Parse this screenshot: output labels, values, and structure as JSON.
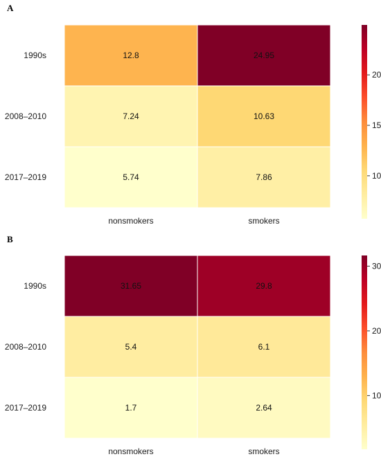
{
  "chart_data": [
    {
      "type": "heatmap",
      "panel": "A",
      "title": "",
      "xlabel": "",
      "ylabel": "",
      "rows": [
        "1990s",
        "2008–2010",
        "2017–2019"
      ],
      "columns": [
        "nonsmokers",
        "smokers"
      ],
      "values": [
        [
          12.8,
          24.95
        ],
        [
          7.24,
          10.63
        ],
        [
          5.74,
          7.86
        ]
      ],
      "value_labels": [
        [
          "12.8",
          "24.95"
        ],
        [
          "7.24",
          "10.63"
        ],
        [
          "5.74",
          "7.86"
        ]
      ],
      "colorbar": {
        "min": 5.74,
        "max": 24.95,
        "ticks": [
          10,
          15,
          20
        ],
        "tick_labels": [
          "10",
          "15",
          "20"
        ]
      },
      "colormap": [
        "#ffffcc",
        "#ffeda0",
        "#fed976",
        "#feb24c",
        "#fd8d3c",
        "#fc4e2a",
        "#e31a1c",
        "#bd0026",
        "#800026"
      ],
      "grid": false
    },
    {
      "type": "heatmap",
      "panel": "B",
      "title": "",
      "xlabel": "",
      "ylabel": "",
      "rows": [
        "1990s",
        "2008–2010",
        "2017–2019"
      ],
      "columns": [
        "nonsmokers",
        "smokers"
      ],
      "values": [
        [
          31.65,
          29.8
        ],
        [
          5.4,
          6.1
        ],
        [
          1.7,
          2.64
        ]
      ],
      "value_labels": [
        [
          "31.65",
          "29.8"
        ],
        [
          "5.4",
          "6.1"
        ],
        [
          "1.7",
          "2.64"
        ]
      ],
      "colorbar": {
        "min": 1.7,
        "max": 31.65,
        "ticks": [
          10,
          20,
          30
        ],
        "tick_labels": [
          "10",
          "20",
          "30"
        ]
      },
      "colormap": [
        "#ffffcc",
        "#ffeda0",
        "#fed976",
        "#feb24c",
        "#fd8d3c",
        "#fc4e2a",
        "#e31a1c",
        "#bd0026",
        "#800026"
      ],
      "grid": false
    }
  ]
}
